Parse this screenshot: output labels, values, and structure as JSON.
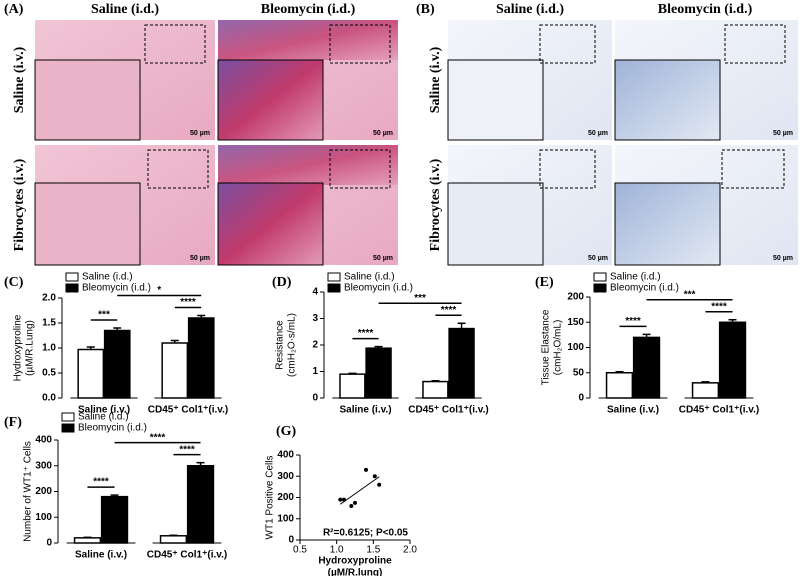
{
  "panel_A": {
    "label": "(A)",
    "columns": [
      "Saline (i.d.)",
      "Bleomycin (i.d.)"
    ],
    "rows": [
      "Saline (i.v.)",
      "Fibrocytes (i.v.)"
    ]
  },
  "panel_B": {
    "label": "(B)",
    "columns": [
      "Saline (i.d.)",
      "Bleomycin (i.d.)"
    ],
    "rows": [
      "Saline (i.v.)",
      "Fibrocytes (i.v.)"
    ]
  },
  "scale_bar": "50 µm",
  "chart_data": [
    {
      "type": "bar",
      "label": "(C)",
      "y_label": [
        "Hydroxyproline",
        "(µM/R.Lung)"
      ],
      "categories": [
        "Saline (i.v.)",
        "CD45⁺ Col1⁺(i.v.)"
      ],
      "series": [
        {
          "name": "Saline (i.d.)",
          "color": "#ffffff",
          "values": [
            0.97,
            1.1
          ],
          "errors": [
            0.05,
            0.05
          ]
        },
        {
          "name": "Bleomycin (i.d.)",
          "color": "#000000",
          "values": [
            1.35,
            1.6
          ],
          "errors": [
            0.05,
            0.05
          ]
        }
      ],
      "ylim": [
        0,
        2
      ],
      "yticks": [
        {
          "value": 0,
          "label": "0.0"
        },
        0.5,
        {
          "value": 1,
          "label": "1.0"
        },
        1.5,
        {
          "value": 2,
          "label": "2.0"
        }
      ],
      "annotations": [
        "***",
        "****",
        "*"
      ]
    },
    {
      "type": "bar",
      "label": "(D)",
      "y_label": [
        "Resistance",
        "(cmH₂O·s/mL)"
      ],
      "categories": [
        "Saline (i.v.)",
        "CD45⁺ Col1⁺(i.v.)"
      ],
      "series": [
        {
          "name": "Saline (i.d.)",
          "color": "#ffffff",
          "values": [
            0.9,
            0.62
          ],
          "errors": [
            0.03,
            0.03
          ]
        },
        {
          "name": "Bleomycin (i.d.)",
          "color": "#000000",
          "values": [
            1.88,
            2.62
          ],
          "errors": [
            0.06,
            0.2
          ]
        }
      ],
      "ylim": [
        0,
        4
      ],
      "yticks": [
        0,
        1,
        2,
        3,
        4
      ],
      "annotations": [
        "****",
        "****",
        "***"
      ]
    },
    {
      "type": "bar",
      "label": "(E)",
      "y_label": [
        "Tissue Elastance",
        "(cmH₂O/mL)"
      ],
      "categories": [
        "Saline (i.v.)",
        "CD45⁺ Col1⁺(i.v.)"
      ],
      "series": [
        {
          "name": "Saline (i.d.)",
          "color": "#ffffff",
          "values": [
            50,
            30
          ],
          "errors": [
            2,
            2
          ]
        },
        {
          "name": "Bleomycin (i.d.)",
          "color": "#000000",
          "values": [
            120,
            150
          ],
          "errors": [
            6,
            5
          ]
        }
      ],
      "ylim": [
        0,
        200
      ],
      "yticks": [
        0,
        50,
        100,
        150,
        200
      ],
      "annotations": [
        "****",
        "****",
        "***"
      ]
    },
    {
      "type": "bar",
      "label": "(F)",
      "y_label": [
        "Number of WT1⁺ Cells"
      ],
      "categories": [
        "Saline (i.v.)",
        "CD45⁺ Col1⁺(i.v.)"
      ],
      "series": [
        {
          "name": "Saline (i.d.)",
          "color": "#ffffff",
          "values": [
            20,
            28
          ],
          "errors": [
            2,
            2
          ]
        },
        {
          "name": "Bleomycin (i.d.)",
          "color": "#000000",
          "values": [
            180,
            300
          ],
          "errors": [
            6,
            12
          ]
        }
      ],
      "ylim": [
        0,
        400
      ],
      "yticks": [
        0,
        100,
        200,
        300,
        400
      ],
      "annotations": [
        "****",
        "****",
        "****"
      ]
    },
    {
      "type": "scatter",
      "label": "(G)",
      "y_label": [
        "WT1 Positive Cells"
      ],
      "x_label": [
        "Hydroxyproline",
        "(µM/R.lung)"
      ],
      "color": "#000000",
      "x": [
        1.05,
        1.1,
        1.2,
        1.25,
        1.4,
        1.52,
        1.58
      ],
      "values": [
        190,
        190,
        160,
        175,
        330,
        300,
        260
      ],
      "xlim": [
        0.5,
        2
      ],
      "xticks": [
        0.5,
        {
          "value": 1,
          "label": "1.0"
        },
        1.5,
        {
          "value": 2,
          "label": "2.0"
        }
      ],
      "ylim": [
        0,
        400
      ],
      "yticks": [
        0,
        100,
        200,
        300,
        400
      ],
      "annotation": "R²=0.6125; P<0.05"
    }
  ]
}
